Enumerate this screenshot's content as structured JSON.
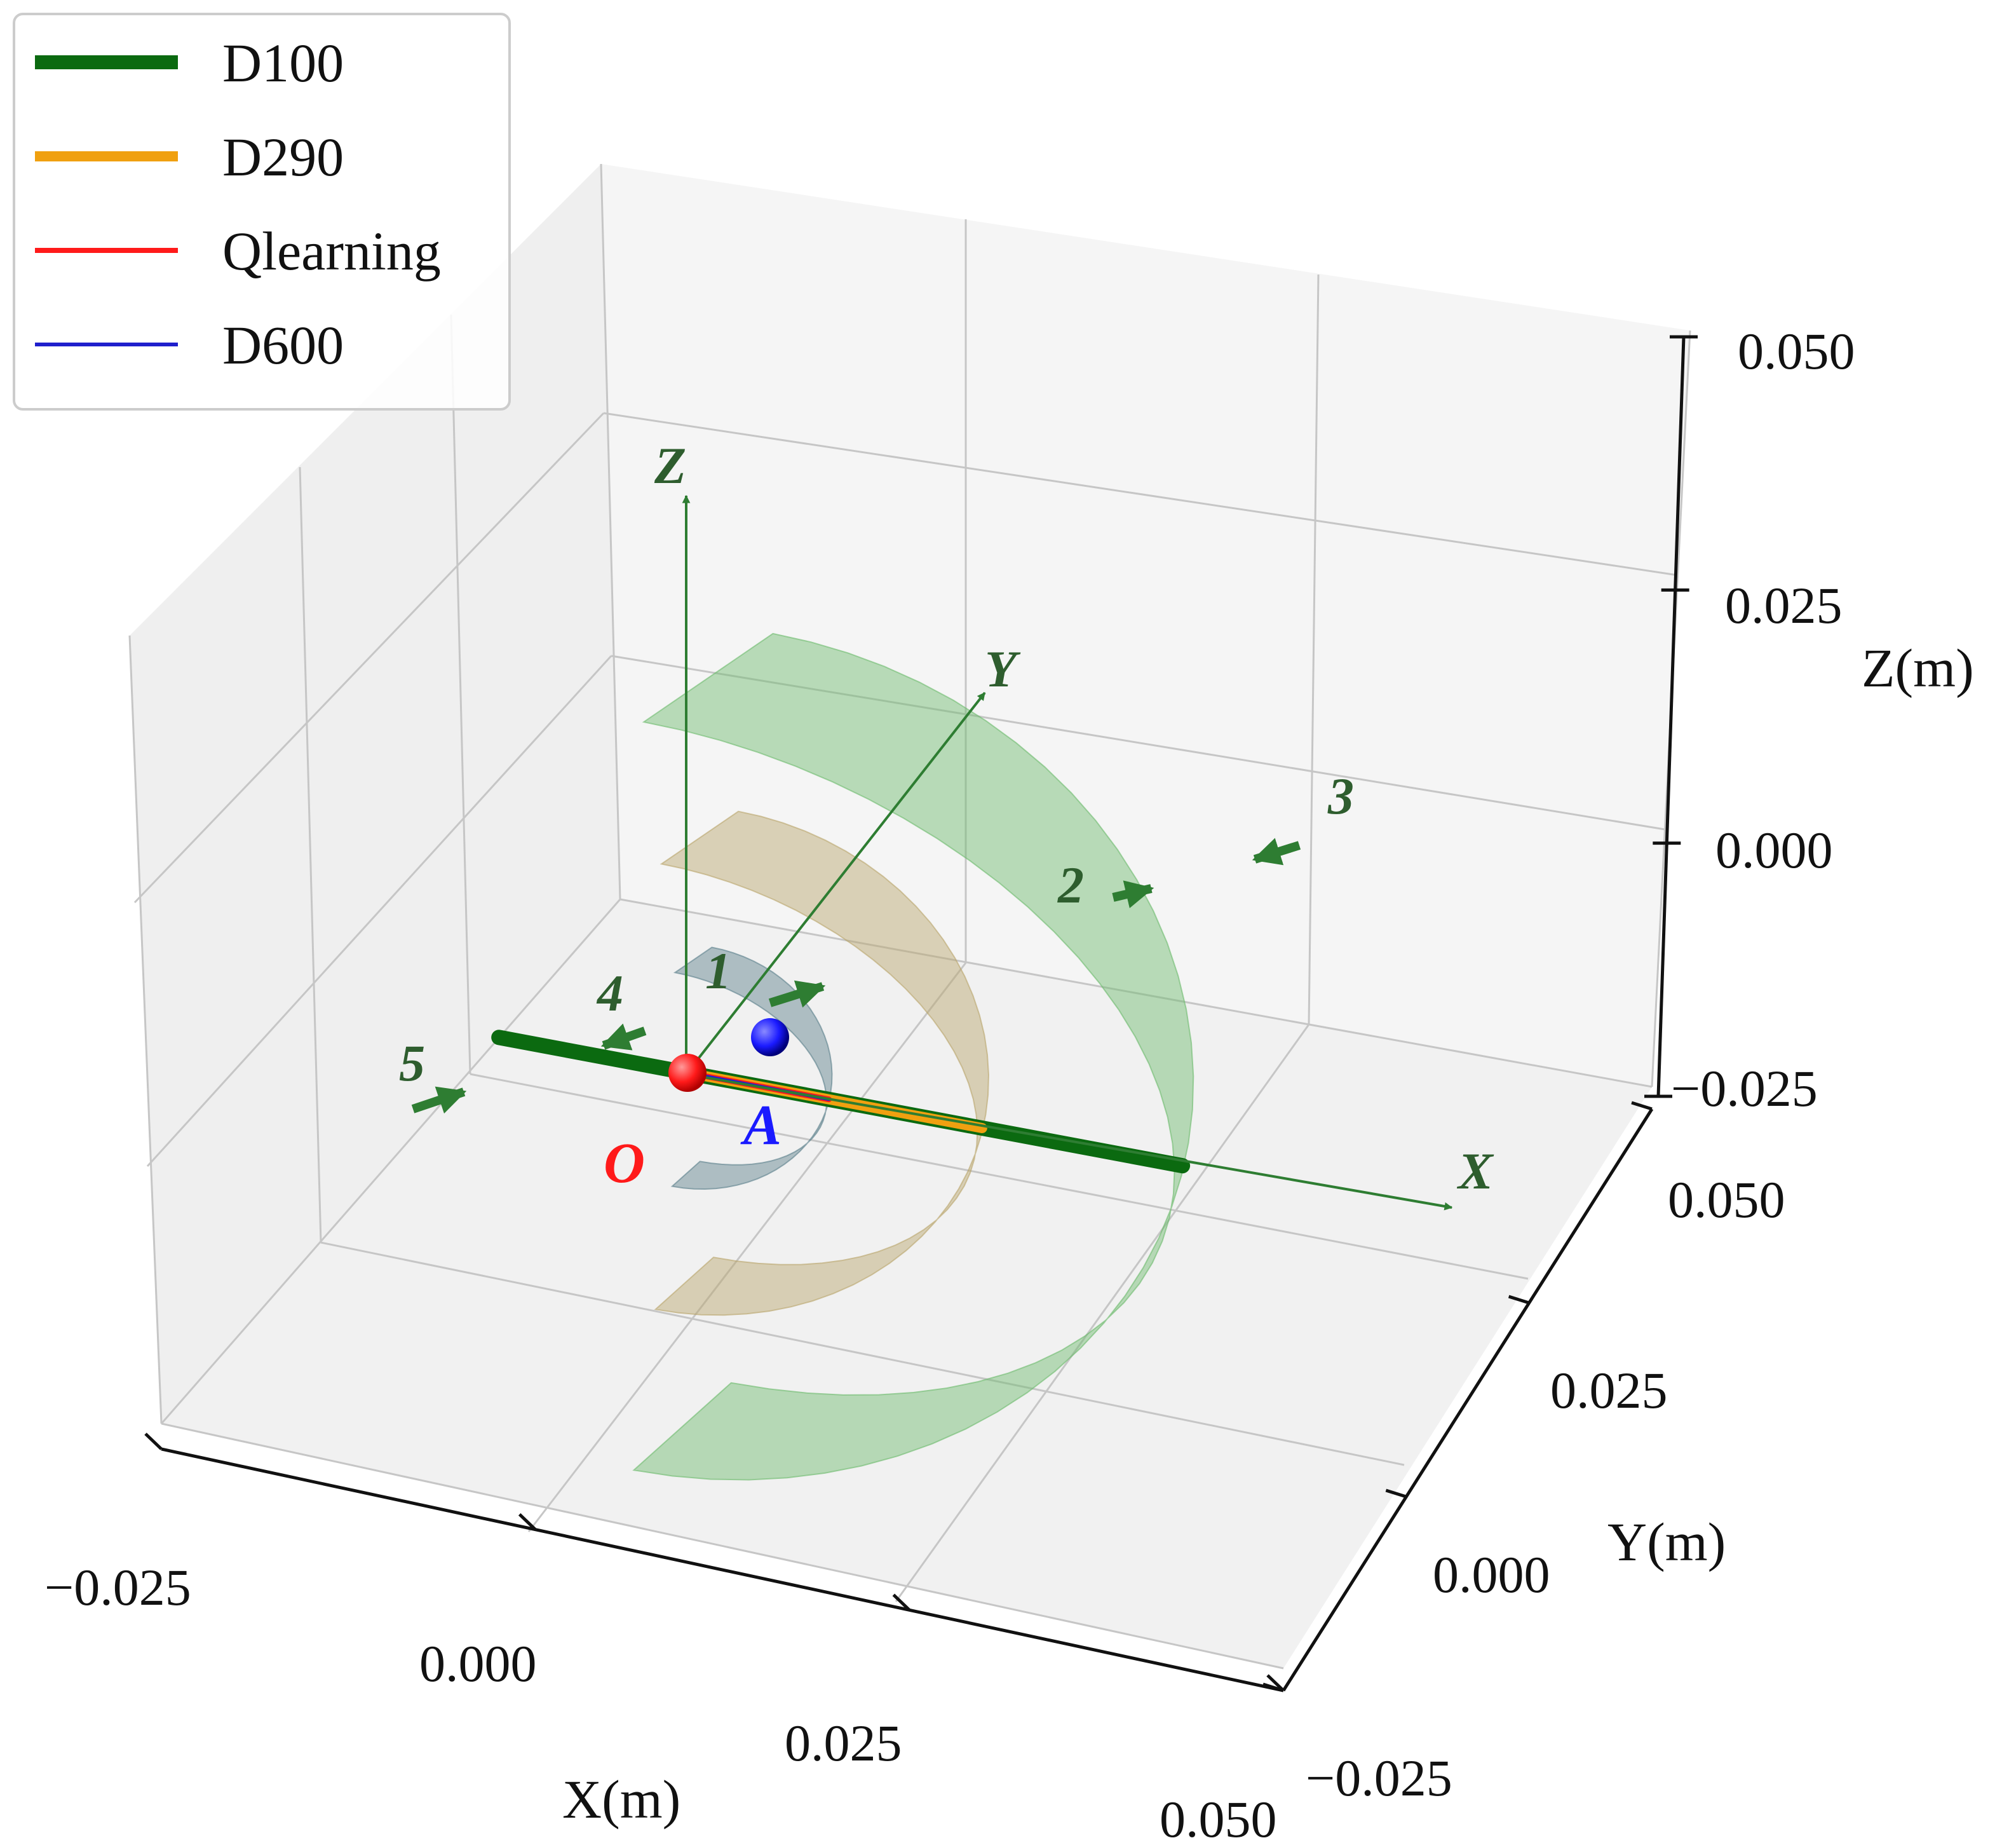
{
  "chart_data": {
    "type": "line",
    "projection": "3d",
    "xlabel": "X(m)",
    "ylabel": "Y(m)",
    "zlabel": "Z(m)",
    "xlim": [
      -0.025,
      0.05
    ],
    "ylim": [
      -0.025,
      0.05
    ],
    "zlim": [
      -0.025,
      0.05
    ],
    "x_ticks": [
      -0.025,
      0.0,
      0.025,
      0.05
    ],
    "y_ticks": [
      -0.025,
      0.0,
      0.025,
      0.05
    ],
    "z_ticks": [
      -0.025,
      0.0,
      0.025,
      0.05
    ],
    "x_tick_labels": [
      "−0.025",
      "0.000",
      "0.025",
      "0.050"
    ],
    "y_tick_labels": [
      "−0.025",
      "0.000",
      "0.025",
      "0.050"
    ],
    "z_tick_labels": [
      "−0.025",
      "0.000",
      "0.025",
      "0.050"
    ],
    "grid": true,
    "legend_position": "top-left",
    "series": [
      {
        "name": "D100",
        "color": "#0b6a10",
        "points": [
          [
            -0.016,
            0.0,
            0.0
          ],
          [
            0.042,
            0.0,
            0.0
          ]
        ]
      },
      {
        "name": "D290",
        "color": "#f0a010",
        "points": [
          [
            0.0,
            0.0,
            0.0
          ],
          [
            0.025,
            0.0,
            0.0
          ]
        ]
      },
      {
        "name": "Qlearning",
        "color": "#ff1a1a",
        "points": [
          [
            0.0,
            0.0,
            0.0
          ],
          [
            0.012,
            0.0,
            0.0
          ]
        ]
      },
      {
        "name": "D600",
        "color": "#1f1fcc",
        "points": [
          [
            0.0,
            0.0,
            0.0
          ],
          [
            0.012,
            0.0,
            0.0
          ]
        ]
      }
    ],
    "points": [
      {
        "label": "O",
        "color": "#ff1a1a",
        "xyz": [
          0.0,
          0.0,
          0.0
        ]
      },
      {
        "label": "A",
        "color": "#1a1aff",
        "xyz": [
          0.005,
          0.0,
          0.0
        ]
      }
    ],
    "surfaces": [
      {
        "shape": "hemisphere-shell",
        "radius": 0.012,
        "color": "#5a7f8a"
      },
      {
        "shape": "hemisphere-shell",
        "radius": 0.025,
        "color": "#b9a56a"
      },
      {
        "shape": "hemisphere-shell",
        "radius": 0.042,
        "color": "#6dbb6d"
      }
    ],
    "frame_axes": {
      "x_label": "X",
      "y_label": "Y",
      "z_label": "Z",
      "color": "#2e7d32"
    },
    "motion_steps": [
      {
        "label": "1",
        "direction": "+x"
      },
      {
        "label": "2",
        "direction": "+x"
      },
      {
        "label": "3",
        "direction": "-x"
      },
      {
        "label": "4",
        "direction": "-x"
      },
      {
        "label": "5",
        "direction": "+x"
      }
    ]
  }
}
